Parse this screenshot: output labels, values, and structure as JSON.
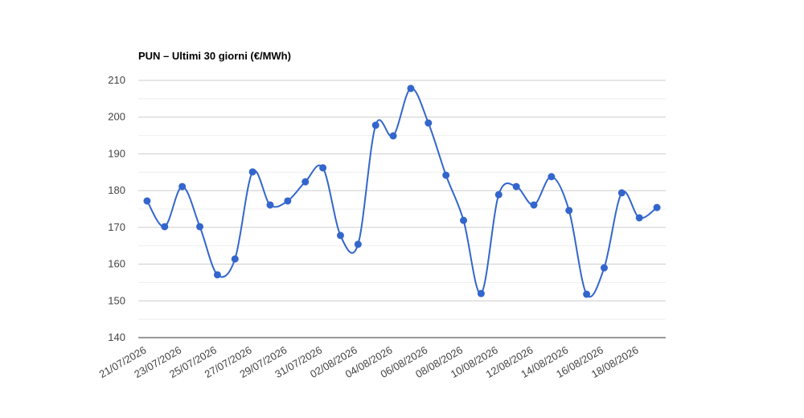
{
  "chart_data": {
    "type": "line",
    "title": "PUN – Ultimi 30 giorni (€/MWh)",
    "categories": [
      "21/07/2026",
      null,
      "23/07/2026",
      null,
      "25/07/2026",
      null,
      "27/07/2026",
      null,
      "29/07/2026",
      null,
      "31/07/2026",
      null,
      "02/08/2026",
      null,
      "04/08/2026",
      null,
      "06/08/2026",
      null,
      "08/08/2026",
      null,
      "10/08/2026",
      null,
      "12/08/2026",
      null,
      "14/08/2026",
      null,
      "16/08/2026",
      null,
      "18/08/2026",
      null
    ],
    "series": [
      {
        "color": "#3366cc",
        "values": [
          177.2,
          170.2,
          181.1,
          170.2,
          157.1,
          161.4,
          185.1,
          176.1,
          177.2,
          182.4,
          186.2,
          167.8,
          165.4,
          197.8,
          194.9,
          207.8,
          198.4,
          184.2,
          171.9,
          152.0,
          178.9,
          181.1,
          176.1,
          183.8,
          174.6,
          151.8,
          159.0,
          179.4,
          172.6,
          175.4
        ]
      }
    ],
    "ylim": [
      140,
      210
    ],
    "yticks": [
      140,
      150,
      160,
      170,
      180,
      190,
      200,
      210
    ],
    "grid": true,
    "minor_grid": true,
    "smooth": true
  }
}
